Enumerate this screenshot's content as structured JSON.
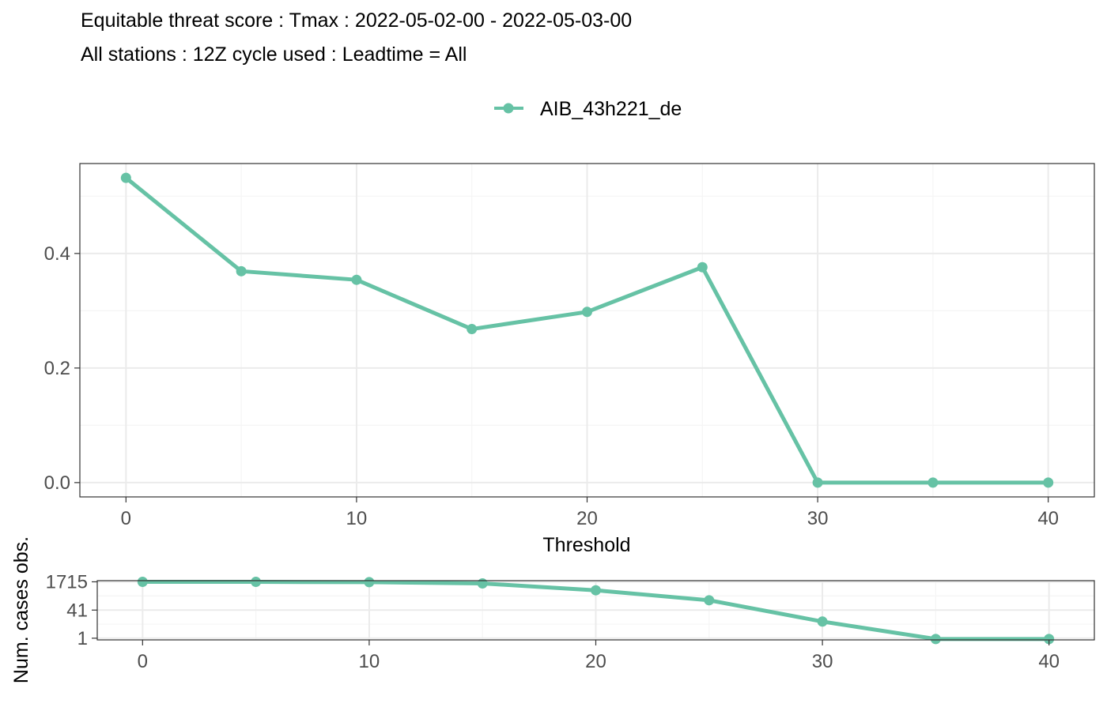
{
  "chart_data": [
    {
      "type": "line",
      "title": "Equitable threat score : Tmax : 2022-05-02-00 - 2022-05-03-00",
      "subtitle": "All stations : 12Z cycle used : Leadtime = All",
      "xlabel": "Threshold",
      "ylabel": "",
      "x": [
        0,
        5,
        10,
        15,
        20,
        25,
        30,
        35,
        40
      ],
      "series": [
        {
          "name": "AIB_43h221_de",
          "values": [
            0.532,
            0.369,
            0.354,
            0.268,
            0.298,
            0.376,
            0.0,
            0.0,
            0.0
          ]
        }
      ],
      "xlim": [
        -2,
        42
      ],
      "ylim": [
        -0.025,
        0.557
      ],
      "xticks": [
        0,
        10,
        20,
        30,
        40
      ],
      "xtick_labels": [
        "0",
        "10",
        "20",
        "30",
        "40"
      ],
      "yticks": [
        0,
        0.2,
        0.4
      ],
      "ytick_labels": [
        "0.0",
        "0.2",
        "0.4"
      ],
      "grid": true,
      "legend_position": "top-center"
    },
    {
      "type": "line",
      "xlabel": "",
      "ylabel": "Num. cases obs.",
      "scale": "log",
      "x": [
        0,
        5,
        10,
        15,
        20,
        25,
        30,
        35,
        40
      ],
      "series": [
        {
          "name": "AIB_43h221_de",
          "values": [
            1715,
            1700,
            1640,
            1380,
            560,
            150,
            9,
            0.9,
            0.9
          ]
        }
      ],
      "xlim": [
        -2,
        42
      ],
      "ylim": [
        0.8,
        2000
      ],
      "xticks": [
        0,
        10,
        20,
        30,
        40
      ],
      "xtick_labels": [
        "0",
        "10",
        "20",
        "30",
        "40"
      ],
      "yticks": [
        1,
        41,
        1715
      ],
      "ytick_labels": [
        "1",
        "41",
        "1715"
      ],
      "grid": true
    }
  ],
  "colors": {
    "series": "#66c2a5",
    "panel_border": "#333333",
    "grid_major": "#ebebeb",
    "grid_minor": "#f5f5f5",
    "tick": "#333333"
  }
}
